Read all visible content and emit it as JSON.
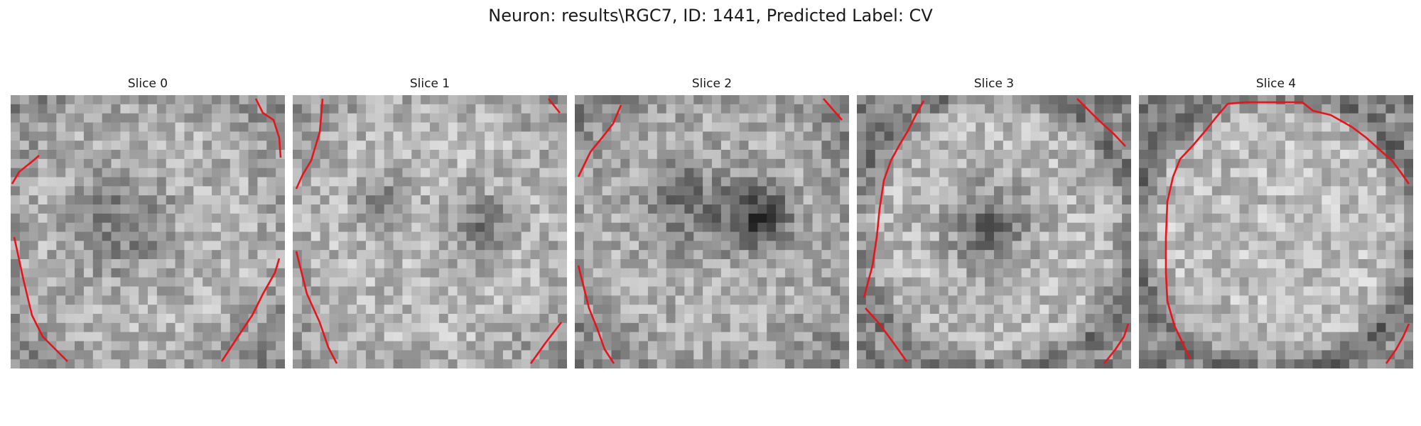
{
  "figure": {
    "title": "Neuron: results\\RGC7, ID: 1441, Predicted Label: CV"
  },
  "panels": [
    {
      "title": "Slice 0",
      "image": "grayscale microscopy slice with red contour",
      "contour_color": "#e8141c"
    },
    {
      "title": "Slice 1",
      "image": "grayscale microscopy slice with red contour",
      "contour_color": "#e8141c"
    },
    {
      "title": "Slice 2",
      "image": "grayscale microscopy slice with red contour",
      "contour_color": "#e8141c"
    },
    {
      "title": "Slice 3",
      "image": "grayscale microscopy slice with red contour",
      "contour_color": "#e8141c"
    },
    {
      "title": "Slice 4",
      "image": "grayscale microscopy slice with red contour",
      "contour_color": "#e8141c"
    }
  ]
}
